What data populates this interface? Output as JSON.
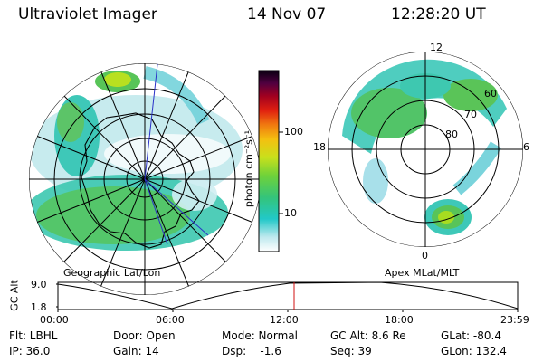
{
  "header": {
    "instrument": "Ultraviolet Imager",
    "date": "14 Nov 07",
    "time": "12:28:20 UT"
  },
  "left_panel": {
    "label": "Geographic Lat/Lon"
  },
  "right_panel": {
    "label": "Apex MLat/MLT",
    "mlt_labels": {
      "top": "12",
      "left": "18",
      "right": "6",
      "bottom": "0"
    },
    "mlat_labels": [
      "60",
      "70",
      "80"
    ]
  },
  "colorbar": {
    "unit_label": "photon cm⁻²s⁻¹",
    "ticks": [
      "100",
      "10"
    ]
  },
  "altitude_plot": {
    "y_label": "GC Alt",
    "y_ticks": [
      "9.0",
      "1.8"
    ],
    "x_ticks": [
      "00:00",
      "06:00",
      "12:00",
      "18:00",
      "23:59"
    ]
  },
  "info": {
    "row1": [
      "Flt: LBHL",
      "Door: Open",
      "Mode: Normal",
      "GC Alt: 8.6 Re",
      "GLat: -80.4"
    ],
    "row2": [
      "IP: 36.0",
      "Gain: 14",
      "Dsp:    -1.6",
      "Seq: 39",
      "GLon: 132.4"
    ]
  }
}
